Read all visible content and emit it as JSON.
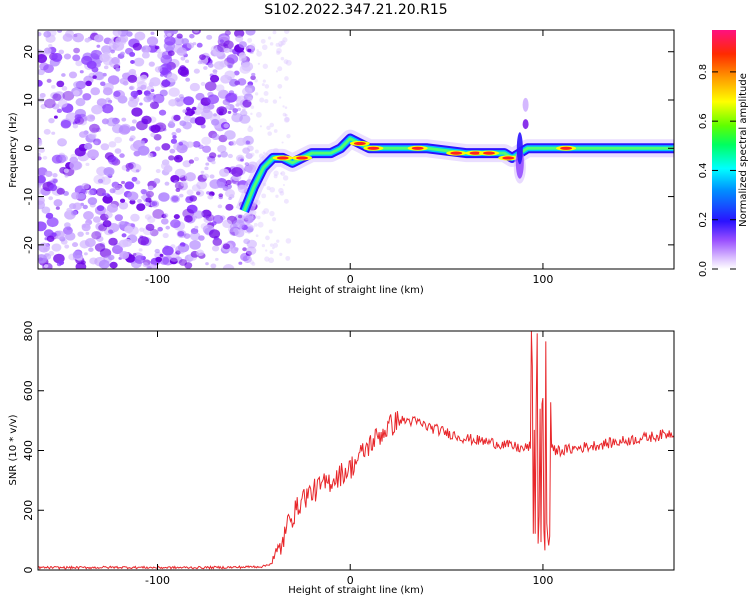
{
  "figure_title": "S102.2022.347.21.20.R15",
  "colors": {
    "scatter_cloud": [
      "#d9c2ff",
      "#b58cff",
      "#8b3dff",
      "#6b00e6",
      "#c9a6ff"
    ],
    "snr_line": "#e8272b",
    "frame": "#000000"
  },
  "chart_data": [
    {
      "type": "heatmap",
      "title": "",
      "xlabel": "Height of straight line (km)",
      "ylabel": "Frequency (Hz)",
      "xlim": [
        -162,
        168
      ],
      "ylim": [
        -25,
        24.5
      ],
      "xticks": [
        -100,
        0,
        100
      ],
      "xtick_labels": [
        "-100",
        "0",
        "100"
      ],
      "yticks": [
        -20,
        -10,
        0,
        10,
        20
      ],
      "ytick_labels": [
        "-20",
        "-10",
        "0",
        "10",
        "20"
      ],
      "noise_region_x": [
        -162,
        -50
      ],
      "signal_ridge": {
        "x": [
          -55,
          -50,
          -45,
          -40,
          -35,
          -30,
          -25,
          -20,
          -15,
          -10,
          -5,
          0,
          5,
          10,
          20,
          40,
          60,
          80,
          84,
          88,
          92,
          96,
          100,
          120,
          140,
          168
        ],
        "y": [
          -13,
          -8,
          -4,
          -2,
          -2,
          -3,
          -2,
          -1,
          -1,
          -1,
          0,
          2,
          1,
          0,
          0,
          0,
          -1,
          -1,
          -2,
          -1,
          0,
          0,
          0,
          0,
          0,
          0
        ]
      },
      "spike_region_x": [
        80,
        95
      ],
      "colorbar": {
        "label": "Normalized spectral amplitude",
        "range": [
          0.0,
          0.97
        ],
        "ticks": [
          0.0,
          0.2,
          0.4,
          0.6,
          0.8
        ],
        "tick_labels": [
          "0.0",
          "0.2",
          "0.4",
          "0.6",
          "0.8"
        ]
      },
      "grid": false,
      "legend": "none"
    },
    {
      "type": "line",
      "title": "",
      "xlabel": "Height of straight line (km)",
      "ylabel": "SNR (10 * v/v)",
      "xlim": [
        -162,
        168
      ],
      "ylim": [
        0,
        800
      ],
      "xticks": [
        -100,
        0,
        100
      ],
      "xtick_labels": [
        "-100",
        "0",
        "100"
      ],
      "yticks": [
        0,
        200,
        400,
        600,
        800
      ],
      "ytick_labels": [
        "0",
        "200",
        "400",
        "600",
        "800"
      ],
      "series": [
        {
          "x": [
            -162,
            -140,
            -120,
            -100,
            -80,
            -60,
            -45,
            -40,
            -36,
            -33,
            -31,
            -30,
            -28,
            -25,
            -20,
            -15,
            -10,
            -5,
            0,
            5,
            10,
            15,
            20,
            25,
            30,
            35,
            40,
            50,
            60,
            70,
            80,
            90,
            95,
            96,
            97,
            98,
            99,
            100,
            101,
            102,
            103,
            104,
            105,
            110,
            120,
            130,
            140,
            150,
            160,
            168
          ],
          "y": [
            8,
            8,
            9,
            8,
            8,
            9,
            12,
            25,
            80,
            130,
            200,
            180,
            200,
            240,
            260,
            280,
            300,
            320,
            340,
            380,
            420,
            450,
            480,
            500,
            500,
            495,
            480,
            460,
            440,
            430,
            420,
            405,
            420,
            560,
            100,
            800,
            60,
            720,
            200,
            560,
            150,
            430,
            400,
            400,
            410,
            420,
            430,
            440,
            450,
            460
          ]
        }
      ],
      "grid": false,
      "legend": "none"
    }
  ]
}
